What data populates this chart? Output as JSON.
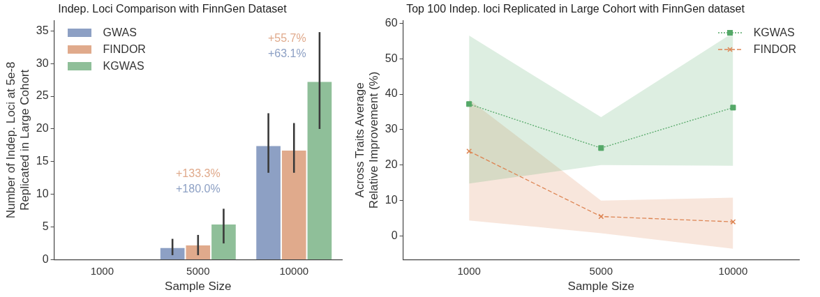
{
  "chart_data": [
    {
      "type": "bar",
      "title": "Indep. Loci Comparison with FinnGen Dataset",
      "xlabel": "Sample Size",
      "ylabel": "Number of Indep. Loci at 5e-8\nReplicated in Large Cohort",
      "categories": [
        "1000",
        "5000",
        "10000"
      ],
      "series": [
        {
          "name": "GWAS",
          "color": "#8da0c4",
          "values": [
            0,
            1.9,
            17.5
          ],
          "errors": [
            null,
            [
              0.7,
              3.2
            ],
            [
              13.3,
              22.4
            ]
          ]
        },
        {
          "name": "FINDOR",
          "color": "#e0aa8c",
          "values": [
            0,
            2.3,
            16.8
          ],
          "errors": [
            null,
            [
              0.7,
              3.8
            ],
            [
              13.3,
              20.9
            ]
          ]
        },
        {
          "name": "KGWAS",
          "color": "#8fbf99",
          "values": [
            0,
            5.5,
            27.3
          ],
          "errors": [
            null,
            [
              2.5,
              7.8
            ],
            [
              20.0,
              34.8
            ]
          ]
        }
      ],
      "ylim": [
        0,
        36.6
      ],
      "yticks": [
        0,
        5,
        10,
        15,
        20,
        25,
        30,
        35
      ],
      "legend": "top left",
      "grid": false,
      "annotations": [
        "+133.3%",
        "+180.0%",
        "+55.7%",
        "+63.1%"
      ]
    },
    {
      "type": "line",
      "title": "Top 100 Indep. loci Replicated in Large Cohort with FinnGen dataset",
      "xlabel": "Sample Size",
      "ylabel": "Across Traits Average\nRelative Improvement (%)",
      "categories": [
        "1000",
        "5000",
        "10000"
      ],
      "series": [
        {
          "name": "KGWAS",
          "color": "#55a868",
          "values": [
            37.2,
            24.8,
            36.2
          ],
          "lower": [
            14.8,
            20.0,
            19.8
          ],
          "upper": [
            56.5,
            33.5,
            57.3
          ],
          "marker": "square",
          "line_style": "dotted"
        },
        {
          "name": "FINDOR",
          "color": "#dd8452",
          "values": [
            23.9,
            5.5,
            4.0
          ],
          "lower": [
            4.4,
            0.8,
            -3.6
          ],
          "upper": [
            38.5,
            10.0,
            10.8
          ],
          "marker": "cross",
          "line_style": "dashed"
        }
      ],
      "ylim": [
        -6.7,
        60.8
      ],
      "yticks": [
        0,
        10,
        20,
        30,
        40,
        50,
        60
      ],
      "legend": "top right",
      "grid": false
    }
  ]
}
